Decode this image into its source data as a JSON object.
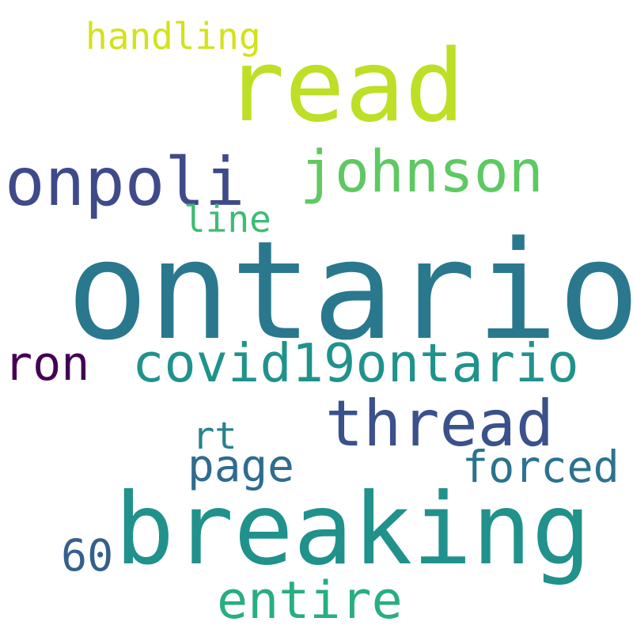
{
  "words": [
    {
      "id": "w-ontario",
      "text": "ontario",
      "color": "#2a788e"
    },
    {
      "id": "w-breaking",
      "text": "breaking",
      "color": "#21918c"
    },
    {
      "id": "w-read",
      "text": "read",
      "color": "#bddf26"
    },
    {
      "id": "w-thread",
      "text": "thread",
      "color": "#3b518b"
    },
    {
      "id": "w-onpoli",
      "text": "onpoli",
      "color": "#3e4a89"
    },
    {
      "id": "w-johnson",
      "text": "johnson",
      "color": "#5ec962"
    },
    {
      "id": "w-covid",
      "text": "covid19ontario",
      "color": "#20928c"
    },
    {
      "id": "w-forced",
      "text": "forced",
      "color": "#2c728e"
    },
    {
      "id": "w-entire",
      "text": "entire",
      "color": "#28ae80"
    },
    {
      "id": "w-page",
      "text": "page",
      "color": "#2f6c8e"
    },
    {
      "id": "w-ron",
      "text": "ron",
      "color": "#440154"
    },
    {
      "id": "w-handling",
      "text": "handling",
      "color": "#d2e21b"
    },
    {
      "id": "w-line",
      "text": "line",
      "color": "#3dbc74"
    },
    {
      "id": "w-rt",
      "text": "rt",
      "color": "#26828e"
    },
    {
      "id": "w-60",
      "text": "60",
      "color": "#355f8d"
    }
  ]
}
